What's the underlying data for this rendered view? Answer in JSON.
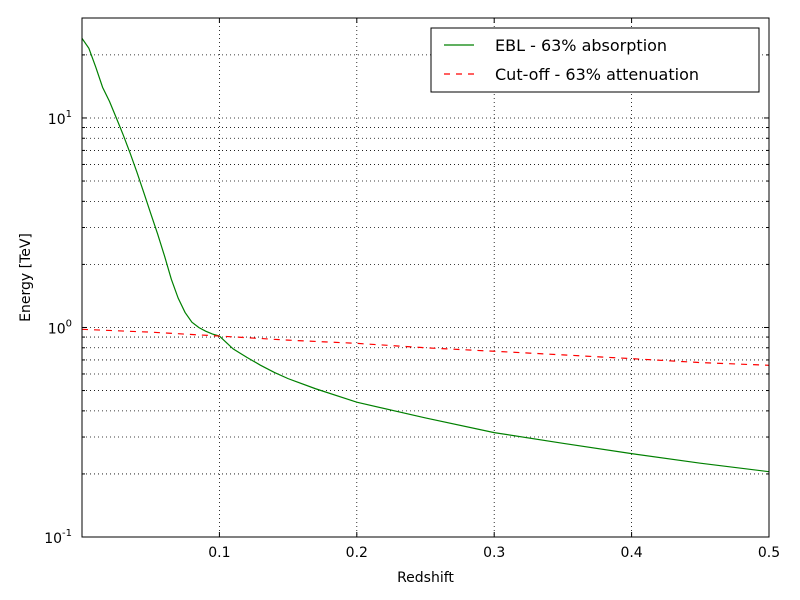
{
  "chart_data": {
    "type": "line",
    "xlabel": "Redshift",
    "ylabel": "Energy [TeV]",
    "xlim": [
      0.0,
      0.5
    ],
    "ylim": [
      0.1,
      30
    ],
    "yscale": "log",
    "grid": true,
    "legend_position": "top-right",
    "x_ticks": [
      {
        "value": 0.1,
        "label": "0.1"
      },
      {
        "value": 0.2,
        "label": "0.2"
      },
      {
        "value": 0.3,
        "label": "0.3"
      },
      {
        "value": 0.4,
        "label": "0.4"
      },
      {
        "value": 0.5,
        "label": "0.5"
      }
    ],
    "y_ticks": [
      {
        "value": 0.1,
        "base": "10",
        "exp": "-1"
      },
      {
        "value": 1,
        "base": "10",
        "exp": "0"
      },
      {
        "value": 10,
        "base": "10",
        "exp": "1"
      }
    ],
    "series": [
      {
        "name": "EBL - 63% absorption",
        "color": "#008000",
        "style": "solid",
        "x": [
          0.0,
          0.005,
          0.01,
          0.015,
          0.02,
          0.025,
          0.03,
          0.035,
          0.04,
          0.045,
          0.05,
          0.055,
          0.06,
          0.065,
          0.07,
          0.075,
          0.08,
          0.085,
          0.09,
          0.095,
          0.1,
          0.11,
          0.12,
          0.13,
          0.14,
          0.15,
          0.17,
          0.2,
          0.25,
          0.3,
          0.35,
          0.4,
          0.45,
          0.5
        ],
        "y": [
          24,
          21.5,
          17.5,
          14,
          12,
          10,
          8.3,
          6.8,
          5.5,
          4.4,
          3.5,
          2.8,
          2.2,
          1.7,
          1.38,
          1.18,
          1.06,
          1.0,
          0.96,
          0.93,
          0.91,
          0.79,
          0.72,
          0.66,
          0.61,
          0.57,
          0.51,
          0.44,
          0.37,
          0.315,
          0.28,
          0.25,
          0.225,
          0.205
        ]
      },
      {
        "name": "Cut-off - 63% attenuation",
        "color": "#ff0000",
        "style": "dashed",
        "x": [
          0.0,
          0.05,
          0.1,
          0.15,
          0.2,
          0.25,
          0.3,
          0.35,
          0.4,
          0.45,
          0.5
        ],
        "y": [
          0.98,
          0.95,
          0.91,
          0.87,
          0.84,
          0.8,
          0.77,
          0.74,
          0.71,
          0.68,
          0.66
        ]
      }
    ]
  }
}
